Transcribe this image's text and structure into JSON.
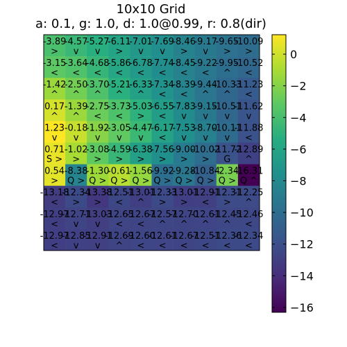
{
  "chart_data": {
    "type": "heatmap",
    "title": "10x10 Grid",
    "subtitle": "a: 0.1, g: 1.0, d: 1.0@0.99, r: 0.8(dir)",
    "rows": 10,
    "cols": 10,
    "values": [
      [
        -3.89,
        -4.57,
        -5.27,
        -6.11,
        -7.01,
        -7.69,
        -8.46,
        -9.17,
        -9.65,
        -10.09
      ],
      [
        -3.15,
        -3.64,
        -4.68,
        -5.86,
        -6.78,
        -7.74,
        -8.45,
        -9.22,
        -9.95,
        -10.52
      ],
      [
        -1.42,
        -2.5,
        -3.7,
        -5.21,
        -6.33,
        -7.34,
        -8.39,
        -9.44,
        -10.33,
        -11.23
      ],
      [
        0.17,
        -1.39,
        -2.75,
        -3.73,
        -5.03,
        -6.55,
        -7.83,
        -9.15,
        -10.51,
        -11.62
      ],
      [
        1.23,
        -0.18,
        -1.92,
        -3.05,
        -4.47,
        -6.17,
        -7.53,
        -8.7,
        -10.11,
        -11.88
      ],
      [
        0.71,
        -1.02,
        -3.08,
        -4.59,
        -6.38,
        -7.56,
        -9.0,
        -10.02,
        -11.72,
        -12.89
      ],
      [
        0.54,
        -8.38,
        -1.3,
        -0.61,
        -1.56,
        -9.92,
        -9.28,
        -10.84,
        -2.34,
        -16.31
      ],
      [
        -13.18,
        -12.34,
        -13.38,
        -12.51,
        -13.01,
        -12.33,
        -13.01,
        -12.91,
        -12.31,
        -12.25
      ],
      [
        -12.97,
        -12.71,
        -13.03,
        -12.65,
        -12.67,
        -12.57,
        -12.7,
        -12.61,
        -12.45,
        -12.46
      ],
      [
        -12.97,
        -12.85,
        -12.91,
        -12.69,
        -12.6,
        -12.61,
        -12.67,
        -12.51,
        -12.36,
        -12.34
      ]
    ],
    "labels": [
      [
        "-3.89",
        "-4.57",
        "-5.27",
        "-6.11",
        "-7.01",
        "-7.69",
        "-8.46",
        "-9.17",
        "-9.65",
        "-10.09"
      ],
      [
        "-3.15",
        "-3.64",
        "-4.68",
        "-5.86",
        "-6.78",
        "-7.74",
        "-8.45",
        "-9.22",
        "-9.95",
        "-10.52"
      ],
      [
        "-1.42",
        "-2.50",
        "-3.70",
        "-5.21",
        "-6.33",
        "-7.34",
        "-8.39",
        "-9.44",
        "-10.33",
        "-11.23"
      ],
      [
        "0.17",
        "-1.39",
        "-2.75",
        "-3.73",
        "-5.03",
        "-6.55",
        "-7.83",
        "-9.15",
        "-10.51",
        "-11.62"
      ],
      [
        "1.23",
        "-0.18",
        "-1.92",
        "-3.05",
        "-4.47",
        "-6.17",
        "-7.53",
        "-8.70",
        "-10.11",
        "-11.88"
      ],
      [
        "0.71",
        "-1.02",
        "-3.08",
        "-4.59",
        "-6.38",
        "-7.56",
        "-9.00",
        "-10.02",
        "-11.72",
        "-12.89"
      ],
      [
        "0.54",
        "-8.38",
        "-1.30",
        "-0.61",
        "-1.56",
        "-9.92",
        "-9.28",
        "-10.84",
        "-2.34",
        "-16.31"
      ],
      [
        "-13.18",
        "-12.34",
        "-13.38",
        "-12.51",
        "-13.01",
        "-12.33",
        "-13.01",
        "-12.91",
        "-12.31",
        "-12.25"
      ],
      [
        "-12.97",
        "-12.71",
        "-13.03",
        "-12.65",
        "-12.67",
        "-12.57",
        "-12.70",
        "-12.61",
        "-12.45",
        "-12.46"
      ],
      [
        "-12.97",
        "-12.85",
        "-12.91",
        "-12.69",
        "-12.60",
        "-12.61",
        "-12.67",
        "-12.51",
        "-12.36",
        "-12.34"
      ]
    ],
    "arrows": [
      [
        ">",
        "v",
        "v",
        ">",
        "v",
        "v",
        ">",
        "v",
        ">",
        ">"
      ],
      [
        "<",
        "<",
        "<",
        "<",
        "<",
        "<",
        "<",
        "<",
        "^",
        "<"
      ],
      [
        "^",
        "^",
        "^",
        "^",
        "^",
        "<",
        "<",
        "^",
        "^",
        "<"
      ],
      [
        "^",
        "^",
        "<",
        "<",
        ">",
        "<",
        "v",
        "v",
        "v",
        "v"
      ],
      [
        "v",
        "v",
        "v",
        "v",
        "v",
        "<",
        "v",
        "v",
        "v",
        "<"
      ],
      [
        "S >",
        ">",
        ">",
        ">",
        ">",
        ">",
        ">",
        ">",
        "G",
        "^"
      ],
      [
        ">",
        "Q >",
        "Q >",
        "Q >",
        "Q >",
        "Q >",
        "Q >",
        "Q >",
        "Q >",
        "Q ^"
      ],
      [
        "<",
        ">",
        ">",
        "<",
        "^",
        ">",
        ">",
        "<",
        ">",
        "^"
      ],
      [
        "<",
        "v",
        "v",
        "<",
        "<",
        "^",
        "^",
        "^",
        "^",
        "<"
      ],
      [
        "<",
        "v",
        "v",
        "^",
        "<",
        "<",
        "<",
        "<",
        "<",
        "<"
      ]
    ],
    "colormap": "viridis",
    "colorbar": {
      "min": -16.31,
      "max": 1.23,
      "ticks": [
        0,
        -2,
        -4,
        -6,
        -8,
        -10,
        -12,
        -14,
        -16
      ],
      "tick_labels": [
        "0",
        "−2",
        "−4",
        "−6",
        "−8",
        "−10",
        "−12",
        "−14",
        "−16"
      ]
    }
  }
}
